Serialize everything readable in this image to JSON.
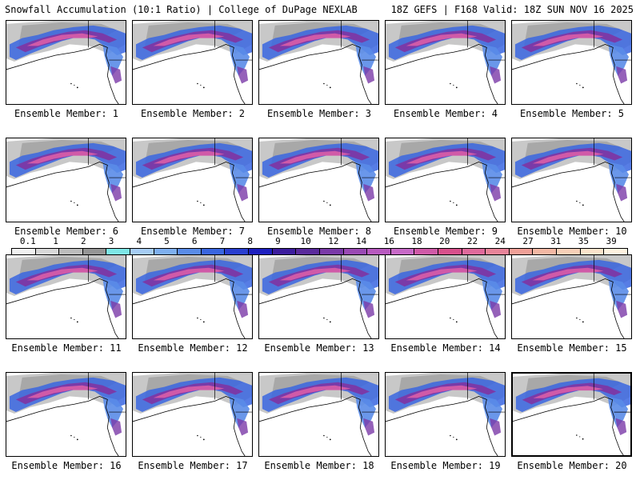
{
  "header": {
    "left_title": "Snowfall Accumulation (10:1 Ratio) | College of DuPage NEXLAB",
    "right_title": "18Z GEFS | F168 Valid: 18Z SUN NOV 16 2025"
  },
  "members": [
    {
      "label": "Ensemble Member: 1"
    },
    {
      "label": "Ensemble Member: 2"
    },
    {
      "label": "Ensemble Member: 3"
    },
    {
      "label": "Ensemble Member: 4"
    },
    {
      "label": "Ensemble Member: 5"
    },
    {
      "label": "Ensemble Member: 6"
    },
    {
      "label": "Ensemble Member: 7"
    },
    {
      "label": "Ensemble Member: 8"
    },
    {
      "label": "Ensemble Member: 9"
    },
    {
      "label": "Ensemble Member: 10"
    },
    {
      "label": "Ensemble Member: 11"
    },
    {
      "label": "Ensemble Member: 12"
    },
    {
      "label": "Ensemble Member: 13"
    },
    {
      "label": "Ensemble Member: 14"
    },
    {
      "label": "Ensemble Member: 15"
    },
    {
      "label": "Ensemble Member: 16"
    },
    {
      "label": "Ensemble Member: 17"
    },
    {
      "label": "Ensemble Member: 18"
    },
    {
      "label": "Ensemble Member: 19"
    },
    {
      "label": "Ensemble Member: 20"
    }
  ],
  "legend": {
    "labels": [
      "0.1",
      "1",
      "2",
      "3",
      "4",
      "5",
      "6",
      "7",
      "8",
      "9",
      "10",
      "12",
      "14",
      "16",
      "18",
      "20",
      "22",
      "24",
      "27",
      "31",
      "35",
      "39"
    ],
    "colors": [
      "#f2f2f2",
      "#d9d9d9",
      "#bdbdbd",
      "#969696",
      "#7ee7e7",
      "#a6cdf5",
      "#7fb0f0",
      "#5a8ce8",
      "#3a66e0",
      "#2a3fd0",
      "#1e20c0",
      "#3d1d9e",
      "#5a2a9c",
      "#7a3aa8",
      "#9a4ab4",
      "#b85ac0",
      "#c86ac8",
      "#d05aa8",
      "#d8508c",
      "#e06a9c",
      "#e8849a",
      "#f0a098",
      "#f4b8a4",
      "#f8d0b8",
      "#fce4cc",
      "#fff2e0"
    ]
  }
}
